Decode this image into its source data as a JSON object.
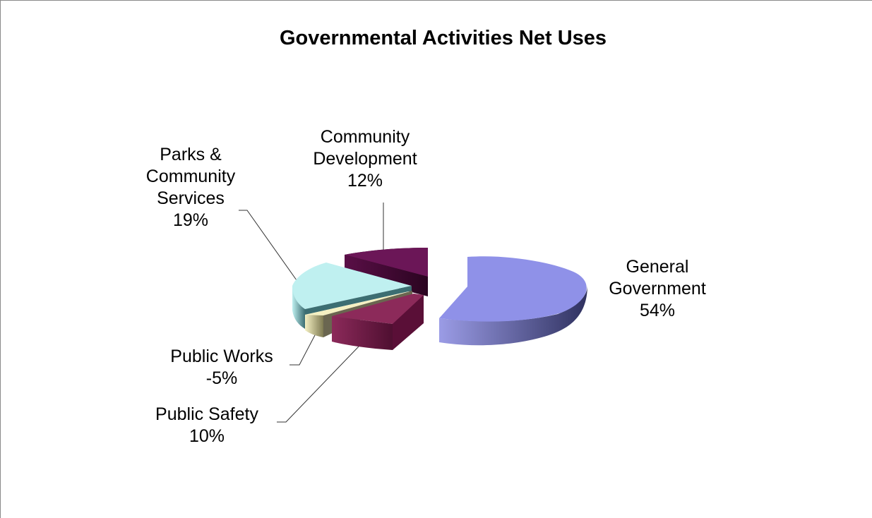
{
  "chart_data": {
    "type": "pie",
    "style": "3d-exploded",
    "title": "Governmental Activities Net Uses",
    "legend": "none",
    "slices": [
      {
        "name": "General Government",
        "value": 54,
        "label_lines": [
          "General",
          "Government"
        ],
        "pct_text": "54%",
        "color": "#8f91e8"
      },
      {
        "name": "Public Safety",
        "value": 10,
        "label_lines": [
          "Public Safety"
        ],
        "pct_text": "10%",
        "color": "#8c2a5a"
      },
      {
        "name": "Public Works",
        "value": -5,
        "label_lines": [
          "Public Works"
        ],
        "pct_text": "-5%",
        "color": "#f4f0c2"
      },
      {
        "name": "Parks & Community Services",
        "value": 19,
        "label_lines": [
          "Parks &",
          "Community",
          "Services"
        ],
        "pct_text": "19%",
        "color": "#bff0f0"
      },
      {
        "name": "Community Development",
        "value": 12,
        "label_lines": [
          "Community",
          "Development"
        ],
        "pct_text": "12%",
        "color": "#6b1657"
      }
    ]
  }
}
